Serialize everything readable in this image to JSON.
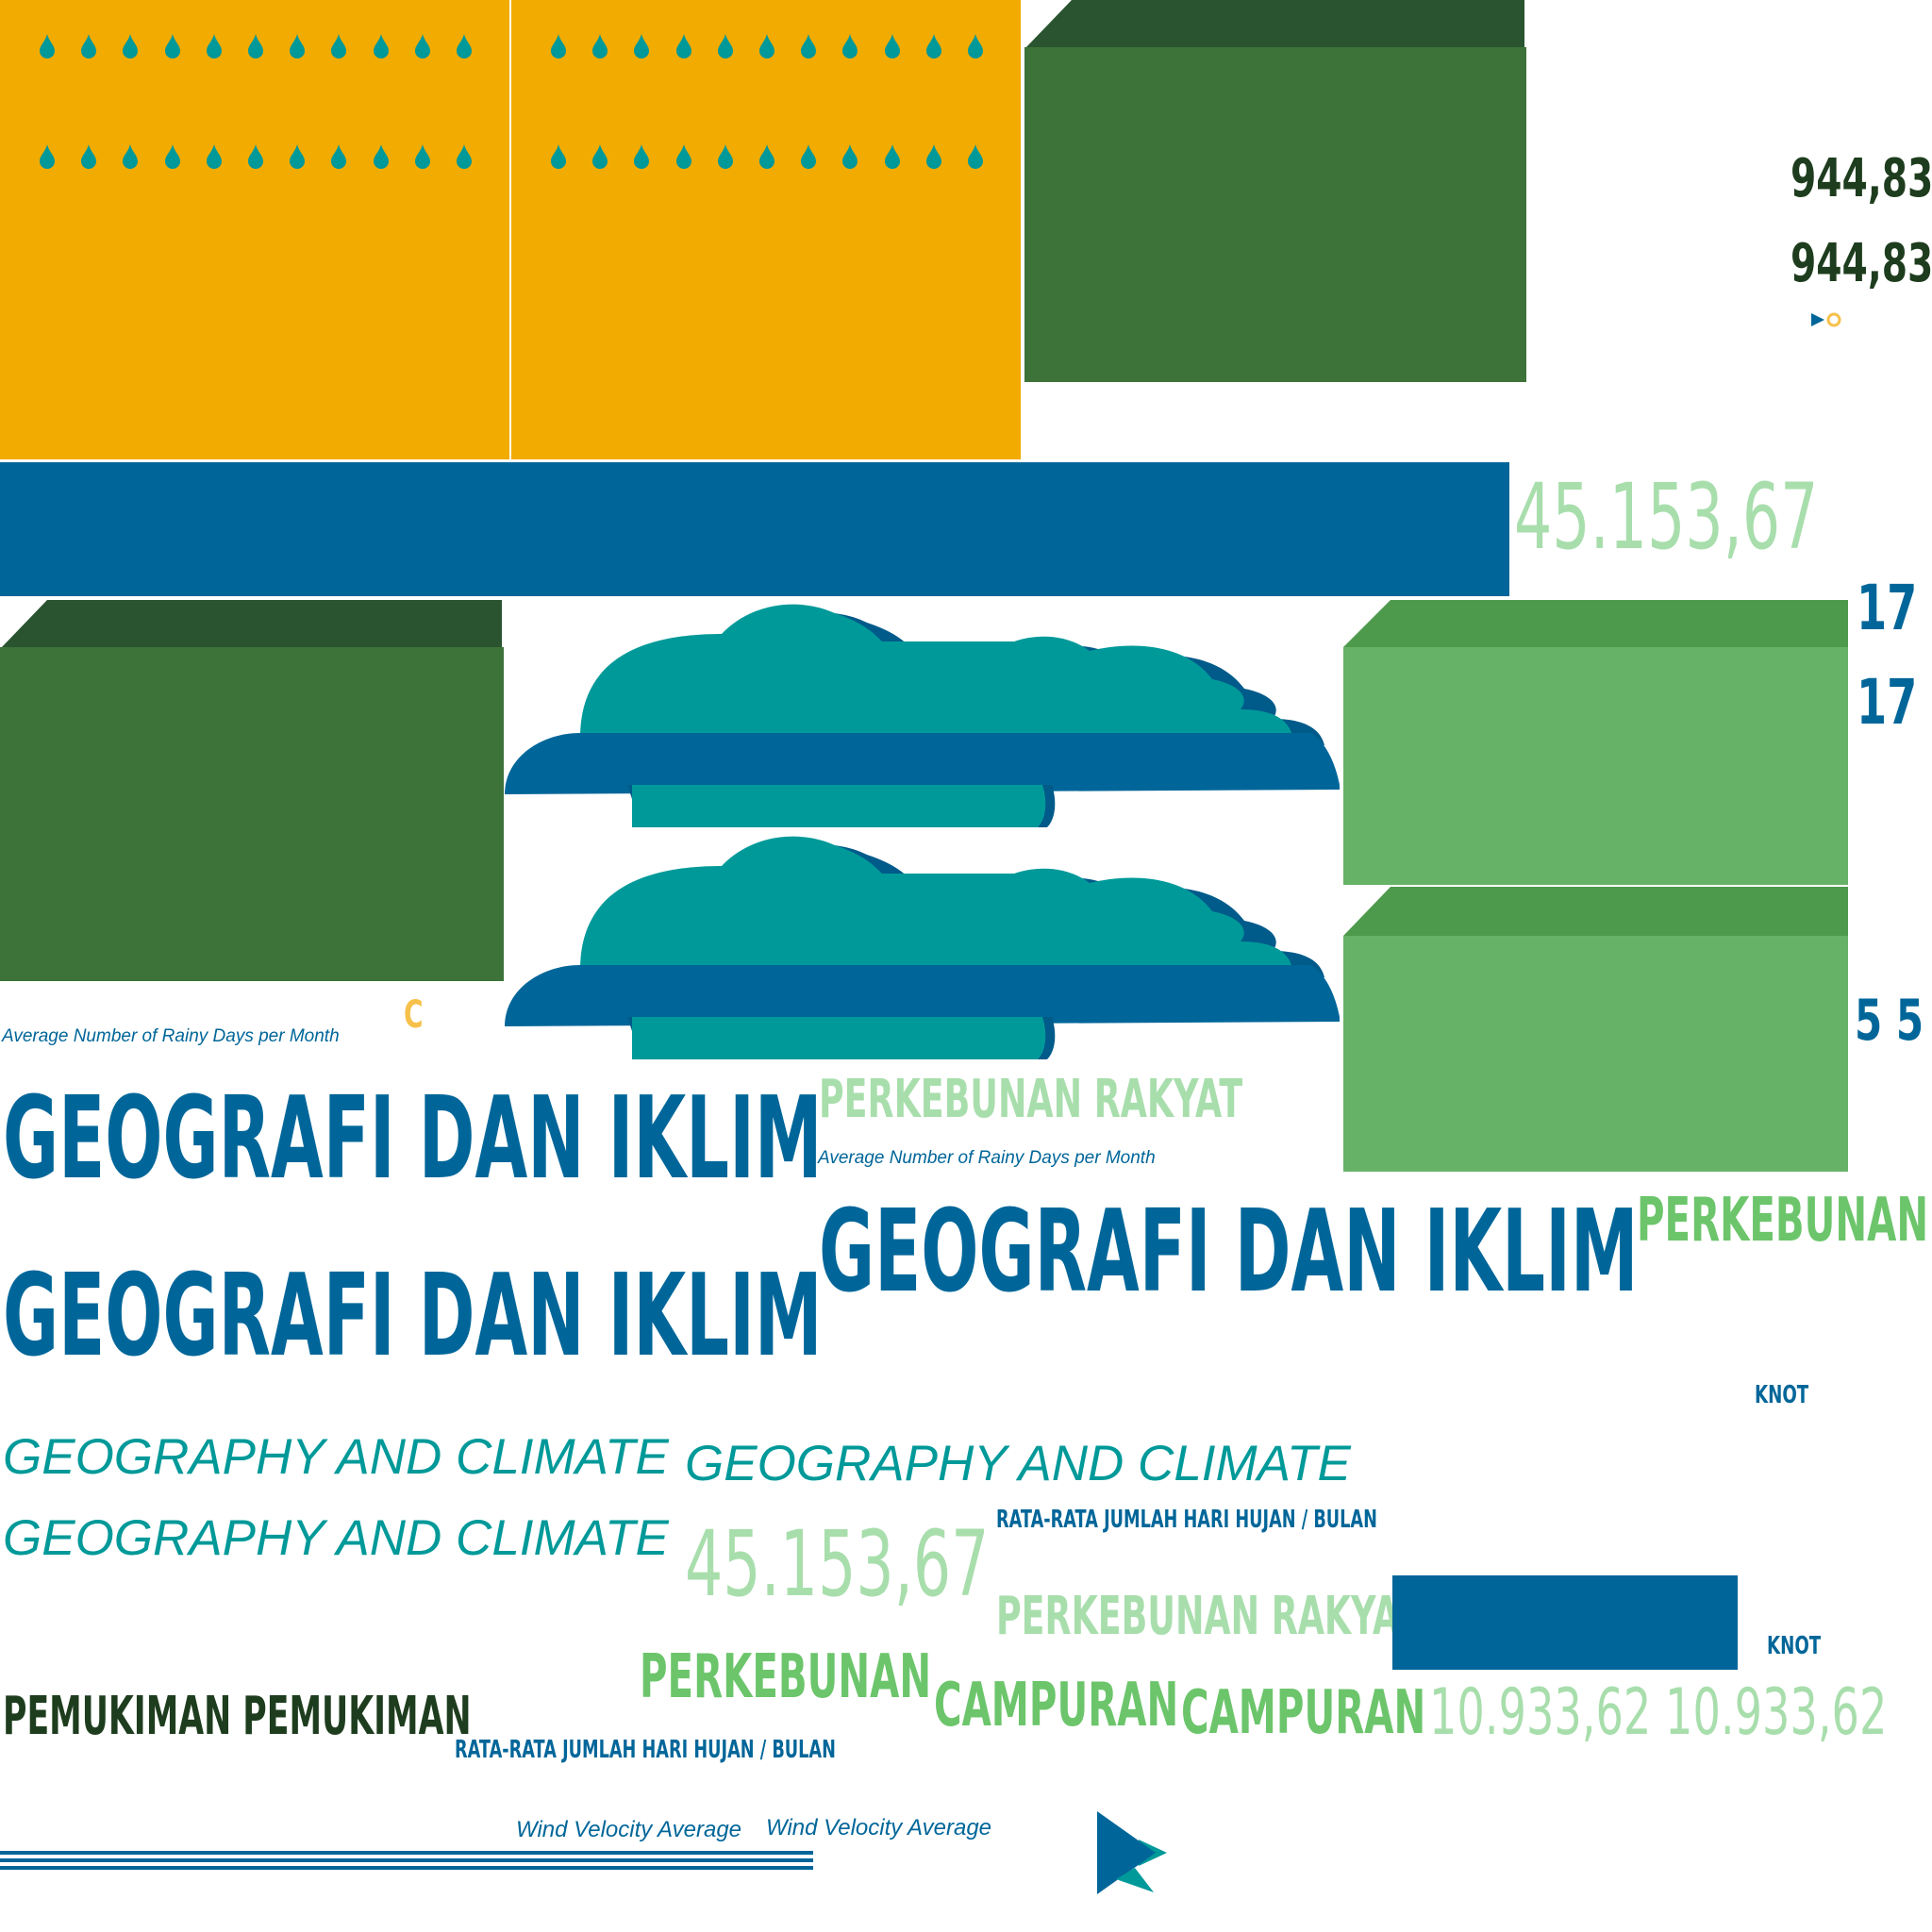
{
  "colors": {
    "blue": "#006699",
    "teal": "#009999",
    "yellow": "#f2ab00",
    "dark_green": "#3d7239",
    "darkest_green": "#1e3d1e",
    "green": "#66b266",
    "light_green": "#a8deac",
    "bright_green": "#6cc56b",
    "accent_yellow": "#f6c04a"
  },
  "icons": [
    "raindrop-icon",
    "cloud-icon",
    "play-arrow-icon",
    "ring-icon"
  ],
  "texts": {
    "value_944_a": "944,83",
    "value_944_b": "944,83",
    "value_45153_a": "45.153,67",
    "value_45153_b": "45.153,67",
    "value_17_a": "17",
    "value_17_b": "17",
    "value_5_5": "5 5",
    "letter_c": "C",
    "rainy_days_en_a": "Average Number of Rainy Days per Month",
    "rainy_days_en_b": "Average Number of Rainy Days per Month",
    "geo_id_a": "GEOGRAFI DAN IKLIM",
    "geo_id_b": "GEOGRAFI DAN IKLIM",
    "geo_id_c": "GEOGRAFI DAN IKLIM",
    "perkebunan_rakyat_a": "PERKEBUNAN RAKYAT",
    "perkebunan_rakyat_b": "PERKEBUNAN RAKYAT",
    "perkebunan_a": "PERKEBUNAN",
    "perkebunan_b": "PERKEBUNAN",
    "knot_a": "KNOT",
    "knot_b": "KNOT",
    "geo_en_a": "GEOGRAPHY AND CLIMATE",
    "geo_en_b": "GEOGRAPHY AND CLIMATE",
    "geo_en_c": "GEOGRAPHY AND CLIMATE",
    "rainy_days_id_a": "RATA-RATA JUMLAH HARI HUJAN / BULAN",
    "rainy_days_id_b": "RATA-RATA JUMLAH HARI HUJAN / BULAN",
    "pemukiman": "PEMUKIMAN PEMUKIMAN",
    "campuran_a": "CAMPURAN",
    "campuran_b": "CAMPURAN",
    "value_10933": "10.933,62 10.933,62",
    "wind_a": "Wind Velocity Average",
    "wind_b": "Wind Velocity Average"
  }
}
